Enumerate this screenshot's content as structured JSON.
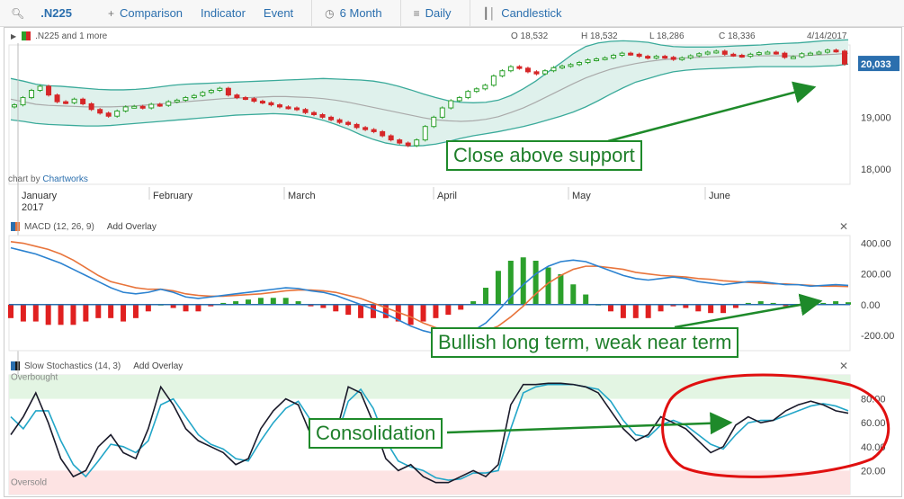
{
  "toolbar": {
    "symbol": ".N225",
    "comparison": "Comparison",
    "indicator": "Indicator",
    "event": "Event",
    "period": "6 Month",
    "interval": "Daily",
    "chart_type": "Candlestick",
    "icons": [
      "search-icon",
      "plus-icon",
      "clock-icon",
      "list-icon",
      "candlestick-icon"
    ]
  },
  "price_panel": {
    "legend": ".N225 and 1 more",
    "open": "O 18,532",
    "high": "H 18,532",
    "low": "L 18,286",
    "close": "C 18,336",
    "date": "4/14/2017",
    "last_value": "20,033",
    "credit_prefix": "chart by ",
    "credit_brand": "Chartworks",
    "callout": "Close above support"
  },
  "macd_panel": {
    "label": "MACD (12, 26, 9)",
    "add_overlay": "Add Overlay",
    "callout": "Bullish long term, weak near term"
  },
  "stoch_panel": {
    "label": "Slow Stochastics (14, 3)",
    "add_overlay": "Add Overlay",
    "overbought": "Overbought",
    "oversold": "Oversold",
    "callout": "Consolidation"
  },
  "colors": {
    "accent": "#2b6fae",
    "band": "#3aaa9a",
    "up": "#2ca02c",
    "down": "#d62728",
    "callout": "#1e8a2a",
    "circle": "#e01010"
  },
  "chart_data": [
    {
      "type": "candlestick",
      "title": ".N225",
      "x_tick_labels": [
        "January 2017",
        "February",
        "March",
        "April",
        "May",
        "June"
      ],
      "y_tick_labels": [
        "20,000",
        "19,000",
        "18,000"
      ],
      "ylim": [
        17700,
        20400
      ],
      "close": [
        19240,
        19380,
        19520,
        19600,
        19430,
        19300,
        19280,
        19350,
        19260,
        19150,
        19080,
        19020,
        19120,
        19200,
        19210,
        19180,
        19250,
        19230,
        19300,
        19330,
        19380,
        19420,
        19480,
        19520,
        19560,
        19430,
        19380,
        19360,
        19310,
        19280,
        19240,
        19200,
        19180,
        19150,
        19090,
        19050,
        19000,
        18950,
        18900,
        18860,
        18800,
        18760,
        18720,
        18640,
        18560,
        18500,
        18450,
        18560,
        18820,
        19000,
        19180,
        19320,
        19380,
        19500,
        19550,
        19620,
        19800,
        19900,
        19980,
        19950,
        19880,
        19840,
        19900,
        19960,
        19990,
        20020,
        20060,
        20110,
        20130,
        20150,
        20200,
        20240,
        20220,
        20180,
        20150,
        20180,
        20160,
        20120,
        20150,
        20190,
        20230,
        20260,
        20280,
        20220,
        20200,
        20180,
        20220,
        20250,
        20260,
        20240,
        20160,
        20170,
        20230,
        20240,
        20260,
        20300,
        20280,
        20030
      ],
      "bollinger": {
        "upper": [
          19750,
          19700,
          19640,
          19610,
          19600,
          19580,
          19560,
          19540,
          19530,
          19530,
          19540,
          19560,
          19590,
          19620,
          19640,
          19650,
          19660,
          19670,
          19680,
          19690,
          19700,
          19710,
          19720,
          19730,
          19740,
          19750,
          19740,
          19730,
          19720,
          19700,
          19660,
          19600,
          19530,
          19450,
          19380,
          19320,
          19290,
          19280,
          19290,
          19330,
          19420,
          19550,
          19700,
          19880,
          20050,
          20230,
          20370,
          20440,
          20470,
          20480,
          20470,
          20450,
          20400,
          20370,
          20360,
          20360,
          20360,
          20370,
          20380,
          20390,
          20400,
          20420,
          20430,
          20440,
          20460,
          20480,
          20490,
          20500
        ],
        "middle": [
          19350,
          19300,
          19250,
          19230,
          19220,
          19210,
          19200,
          19200,
          19200,
          19210,
          19220,
          19240,
          19260,
          19280,
          19300,
          19320,
          19340,
          19360,
          19370,
          19380,
          19390,
          19400,
          19400,
          19390,
          19380,
          19360,
          19330,
          19290,
          19240,
          19190,
          19140,
          19090,
          19040,
          18990,
          18950,
          18930,
          18920,
          18930,
          18960,
          19010,
          19090,
          19180,
          19290,
          19410,
          19530,
          19650,
          19760,
          19850,
          19930,
          19990,
          20040,
          20080,
          20110,
          20130,
          20150,
          20160,
          20170,
          20180,
          20190,
          20190,
          20190,
          20190,
          20190,
          20190,
          20200,
          20210,
          20220,
          20240
        ],
        "lower": [
          18950,
          18920,
          18880,
          18860,
          18850,
          18840,
          18830,
          18830,
          18840,
          18860,
          18880,
          18900,
          18920,
          18940,
          18960,
          18980,
          19000,
          19020,
          19040,
          19050,
          19060,
          19070,
          19060,
          19040,
          19000,
          18940,
          18860,
          18770,
          18660,
          18570,
          18500,
          18460,
          18440,
          18450,
          18480,
          18530,
          18590,
          18640,
          18680,
          18720,
          18770,
          18820,
          18880,
          18950,
          19020,
          19100,
          19200,
          19320,
          19450,
          19570,
          19680,
          19750,
          19820,
          19880,
          19910,
          19930,
          19940,
          19950,
          19960,
          19970,
          19980,
          19980,
          19980,
          19980,
          19980,
          19990,
          20000,
          20030
        ]
      }
    },
    {
      "type": "line",
      "title": "MACD (12, 26, 9)",
      "y_tick_labels": [
        "400.00",
        "200.00",
        "0.00",
        "-200.00"
      ],
      "ylim": [
        -300,
        450
      ],
      "series": [
        {
          "values": [
            370,
            350,
            330,
            300,
            270,
            230,
            190,
            150,
            110,
            80,
            70,
            80,
            100,
            80,
            50,
            40,
            50,
            60,
            70,
            80,
            90,
            100,
            110,
            105,
            90,
            80,
            60,
            30,
            0,
            -30,
            -60,
            -100,
            -140,
            -170,
            -190,
            -200,
            -195,
            -170,
            -120,
            -40,
            50,
            130,
            200,
            250,
            280,
            290,
            280,
            250,
            220,
            190,
            170,
            160,
            170,
            180,
            170,
            150,
            140,
            130,
            140,
            150,
            150,
            140,
            130,
            130,
            120,
            125,
            130,
            125
          ]
        },
        {
          "values": [
            410,
            400,
            380,
            360,
            330,
            290,
            240,
            190,
            150,
            130,
            110,
            100,
            100,
            90,
            70,
            60,
            55,
            55,
            60,
            65,
            70,
            80,
            90,
            95,
            95,
            90,
            80,
            60,
            40,
            10,
            -20,
            -50,
            -80,
            -120,
            -150,
            -170,
            -180,
            -180,
            -170,
            -140,
            -80,
            -10,
            70,
            140,
            190,
            230,
            250,
            250,
            240,
            230,
            210,
            200,
            190,
            185,
            180,
            170,
            165,
            155,
            150,
            145,
            140,
            135,
            135,
            130,
            125,
            120,
            120,
            118
          ]
        }
      ]
    },
    {
      "type": "line",
      "title": "Slow Stochastics (14, 3)",
      "y_tick_labels": [
        "80.00",
        "60.00",
        "40.00",
        "20.00"
      ],
      "ylim": [
        0,
        100
      ],
      "series": [
        {
          "values": [
            50,
            65,
            85,
            60,
            30,
            15,
            20,
            40,
            50,
            35,
            30,
            55,
            90,
            75,
            55,
            45,
            40,
            35,
            25,
            30,
            55,
            70,
            80,
            75,
            50,
            40,
            50,
            90,
            85,
            60,
            30,
            20,
            25,
            15,
            10,
            10,
            15,
            20,
            15,
            25,
            75,
            92,
            92,
            93,
            93,
            92,
            90,
            85,
            70,
            55,
            45,
            50,
            65,
            60,
            55,
            45,
            35,
            40,
            58,
            65,
            60,
            62,
            70,
            75,
            78,
            75,
            70,
            68
          ]
        },
        {
          "values": [
            65,
            55,
            70,
            70,
            45,
            25,
            15,
            28,
            42,
            40,
            35,
            45,
            75,
            80,
            65,
            50,
            42,
            38,
            30,
            28,
            45,
            60,
            72,
            78,
            62,
            48,
            46,
            78,
            88,
            72,
            45,
            28,
            23,
            20,
            14,
            12,
            13,
            18,
            18,
            20,
            55,
            85,
            90,
            92,
            92,
            92,
            90,
            88,
            78,
            62,
            50,
            48,
            58,
            62,
            58,
            50,
            42,
            38,
            50,
            60,
            62,
            62,
            66,
            70,
            74,
            76,
            74,
            70
          ]
        }
      ]
    }
  ]
}
